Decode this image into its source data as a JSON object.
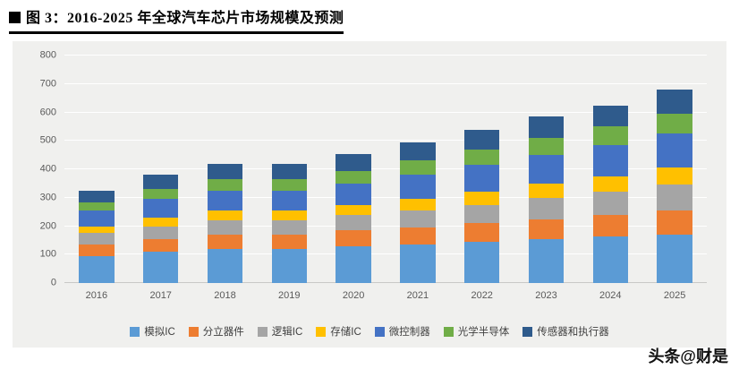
{
  "title": {
    "text": "图 3：2016-2025 年全球汽车芯片市场规模及预测"
  },
  "watermark": "头条@财是",
  "panel": {
    "background": "#f0f0ee",
    "gridline_color": "#ffffff"
  },
  "chart_data": {
    "type": "bar",
    "stacked": true,
    "title": "2016-2025 年全球汽车芯片市场规模及预测",
    "xlabel": "",
    "ylabel": "",
    "ylim": [
      0,
      800
    ],
    "ytick_interval": 100,
    "grid": true,
    "legend_position": "bottom",
    "categories": [
      "2016",
      "2017",
      "2018",
      "2019",
      "2020",
      "2021",
      "2022",
      "2023",
      "2024",
      "2025"
    ],
    "series": [
      {
        "name": "模拟IC",
        "color": "#5B9BD5",
        "values": [
          95,
          110,
          120,
          120,
          130,
          135,
          145,
          155,
          165,
          170
        ]
      },
      {
        "name": "分立器件",
        "color": "#ED7D31",
        "values": [
          40,
          45,
          50,
          50,
          55,
          60,
          65,
          70,
          75,
          85
        ]
      },
      {
        "name": "逻辑IC",
        "color": "#A5A5A5",
        "values": [
          40,
          45,
          50,
          50,
          55,
          60,
          65,
          75,
          80,
          90
        ]
      },
      {
        "name": "存储IC",
        "color": "#FFC000",
        "values": [
          25,
          30,
          35,
          35,
          35,
          40,
          45,
          50,
          55,
          60
        ]
      },
      {
        "name": "微控制器",
        "color": "#4472C4",
        "values": [
          55,
          65,
          70,
          70,
          75,
          85,
          95,
          100,
          110,
          120
        ]
      },
      {
        "name": "光学半导体",
        "color": "#70AD47",
        "values": [
          30,
          35,
          40,
          40,
          45,
          50,
          55,
          60,
          65,
          70
        ]
      },
      {
        "name": "传感器和执行器",
        "color": "#2F5B8C",
        "values": [
          40,
          50,
          55,
          55,
          60,
          65,
          70,
          75,
          75,
          85
        ]
      }
    ],
    "totals": [
      325,
      380,
      420,
      420,
      455,
      495,
      540,
      585,
      625,
      680
    ]
  }
}
